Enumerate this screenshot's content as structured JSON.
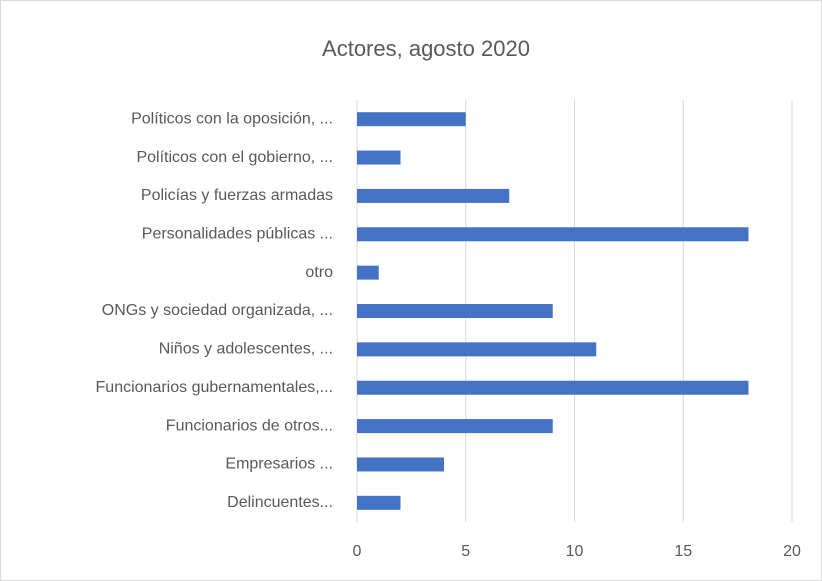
{
  "chart_data": {
    "type": "bar",
    "orientation": "horizontal",
    "title": "Actores, agosto 2020",
    "categories": [
      "Políticos con la oposición, ...",
      "Políticos con el gobierno, ...",
      "Policías y fuerzas armadas",
      "Personalidades públicas ...",
      "otro",
      "ONGs y sociedad organizada, ...",
      "Niños y adolescentes, ...",
      "Funcionarios gubernamentales,...",
      "Funcionarios de otros...",
      "Empresarios ...",
      "Delincuentes..."
    ],
    "values": [
      5,
      2,
      7,
      18,
      1,
      9,
      11,
      18,
      9,
      4,
      2
    ],
    "color": "#4472c4",
    "xlim": [
      0,
      20
    ],
    "xticks": [
      0,
      5,
      10,
      15,
      20
    ],
    "grid": true
  }
}
